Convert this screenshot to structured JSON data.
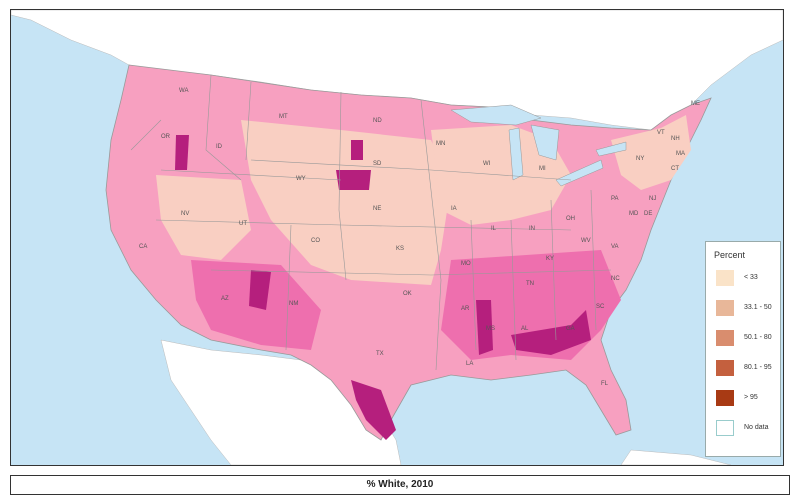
{
  "map": {
    "state_labels": [
      "WA",
      "OR",
      "ID",
      "MT",
      "WY",
      "ND",
      "SD",
      "NE",
      "NV",
      "UT",
      "CO",
      "KS",
      "CA",
      "AZ",
      "NM",
      "OK",
      "TX",
      "MN",
      "IA",
      "MO",
      "AR",
      "LA",
      "WI",
      "IL",
      "MI",
      "IN",
      "OH",
      "KY",
      "TN",
      "MS",
      "AL",
      "GA",
      "FL",
      "SC",
      "NC",
      "VA",
      "WV",
      "PA",
      "NY",
      "ME",
      "VT",
      "NH",
      "MA",
      "CT",
      "NJ",
      "DE",
      "MD"
    ],
    "colors": {
      "ocean": "#c6e4f5",
      "land_other": "#ffffff",
      "county_light": "#f9cfc2",
      "county_mid": "#f7a0c0",
      "county_pink": "#ee6fae",
      "county_dark": "#b51f7d",
      "border": "#999999"
    }
  },
  "legend": {
    "title": "Percent",
    "items": [
      {
        "label": "< 33",
        "color": "#fae3c8"
      },
      {
        "label": "33.1 - 50",
        "color": "#e8b799"
      },
      {
        "label": "50.1 - 80",
        "color": "#d98d6e"
      },
      {
        "label": "80.1 - 95",
        "color": "#c4603e"
      },
      {
        "label": "> 95",
        "color": "#a83a14"
      },
      {
        "label": "No data",
        "color": "#ffffff"
      }
    ]
  },
  "caption": "% White, 2010"
}
